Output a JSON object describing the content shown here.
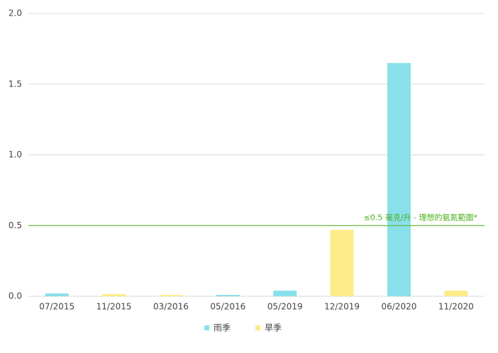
{
  "chart_data": {
    "type": "bar",
    "categories": [
      "07/2015",
      "11/2015",
      "03/2016",
      "05/2016",
      "05/2019",
      "12/2019",
      "06/2020",
      "11/2020"
    ],
    "series": [
      {
        "name": "雨季",
        "color": "#8ae0ea",
        "values": [
          0.02,
          null,
          null,
          0.01,
          0.04,
          null,
          1.65,
          null
        ]
      },
      {
        "name": "旱季",
        "color": "#fdec8a",
        "values": [
          null,
          0.015,
          0.01,
          null,
          null,
          0.47,
          null,
          0.04
        ]
      }
    ],
    "ylim": [
      0,
      2
    ],
    "yticks": [
      {
        "value": 0,
        "label": "0.0"
      },
      0.5,
      {
        "value": 1,
        "label": "1.0"
      },
      1.5,
      {
        "value": 2,
        "label": "2.0"
      }
    ],
    "grid": true,
    "reference_line": {
      "value": 0.5,
      "label": "≤0.5 毫克/升 - 理想的氨氮範圍*",
      "color": "#4caf1a"
    },
    "legend": "bottom"
  }
}
